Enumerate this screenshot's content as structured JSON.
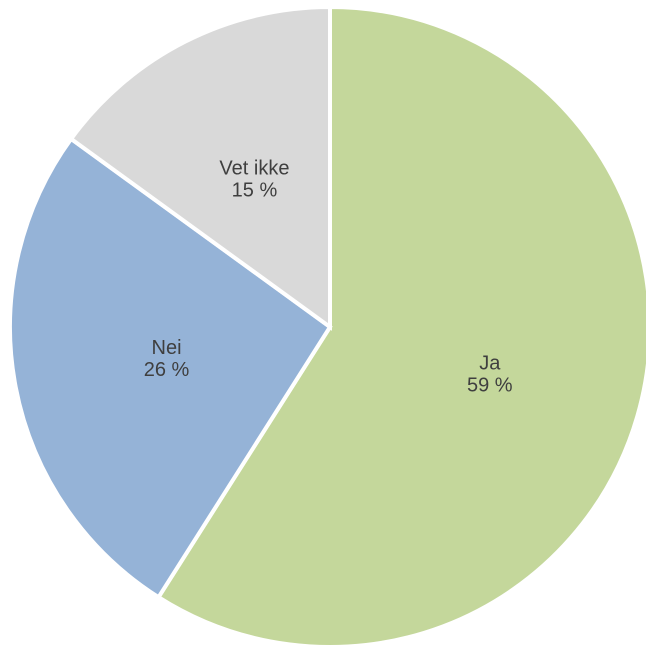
{
  "chart_data": {
    "type": "pie",
    "title": "",
    "slices": [
      {
        "name": "Ja",
        "value": 59,
        "value_label": "59 %",
        "color": "#c4d79b"
      },
      {
        "name": "Nei",
        "value": 26,
        "value_label": "26 %",
        "color": "#95b3d7"
      },
      {
        "name": "Vet ikke",
        "value": 15,
        "value_label": "15 %",
        "color": "#d9d9d9"
      }
    ],
    "start_angle": "top (12 o'clock)",
    "direction": "clockwise",
    "legend": "none",
    "labels_inside_slices": true
  }
}
